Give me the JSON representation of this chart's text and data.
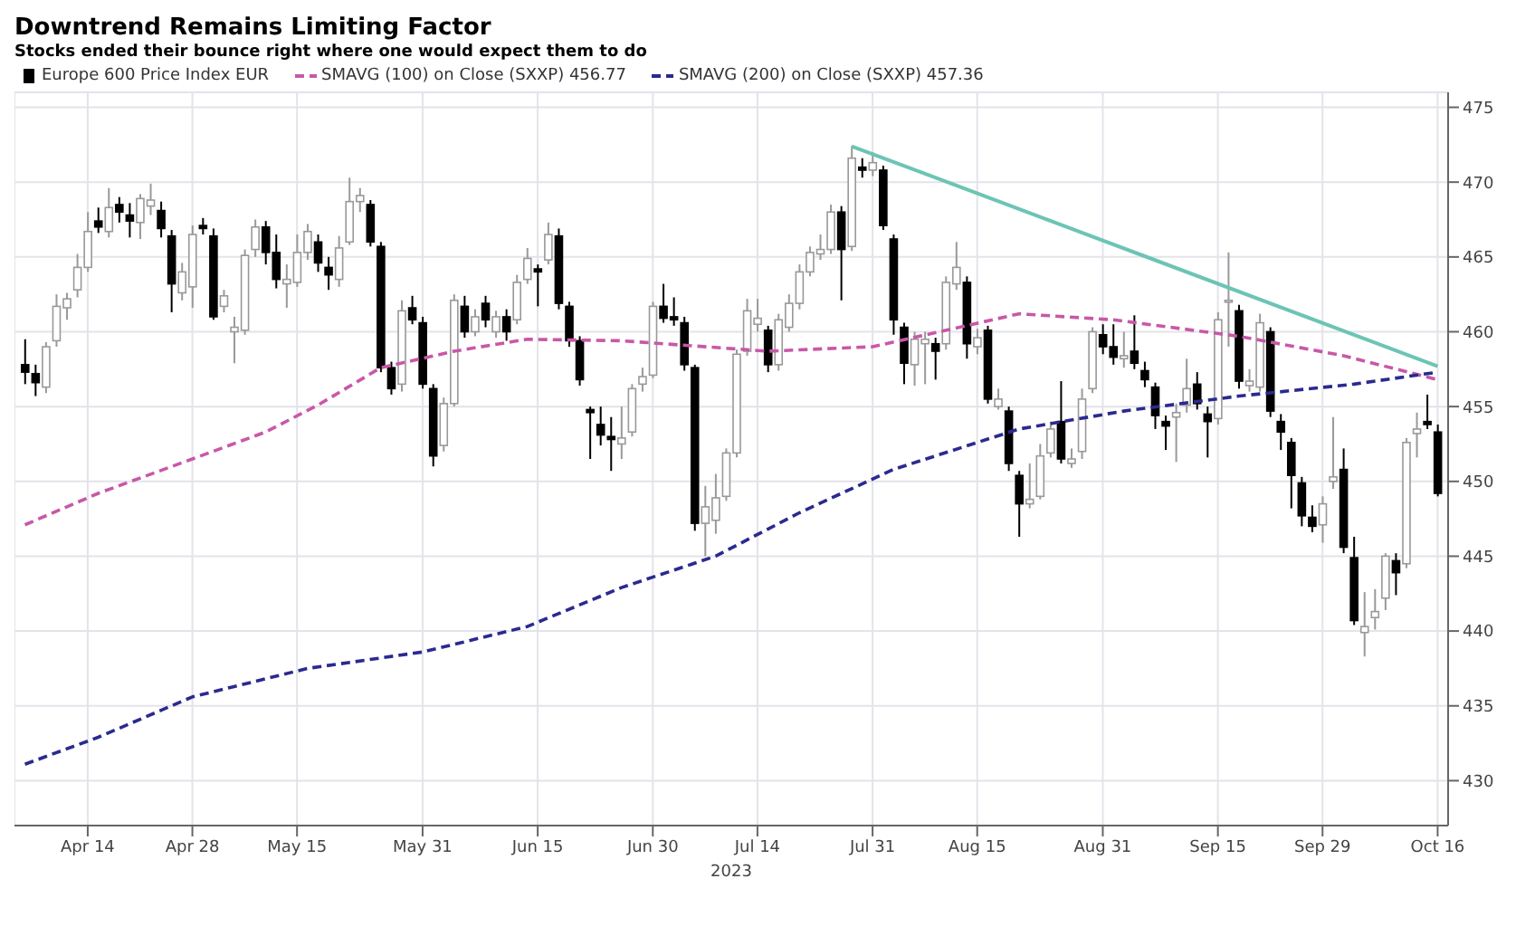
{
  "chart_data": {
    "type": "candlestick",
    "title": "Downtrend Remains Limiting Factor",
    "subtitle": "Stocks ended their bounce right where one would expect them to do",
    "xlabel": "2023",
    "categories": [
      null,
      null,
      null,
      null,
      null,
      null,
      "Apr 14",
      null,
      null,
      null,
      null,
      null,
      null,
      null,
      null,
      null,
      "Apr 28",
      null,
      null,
      null,
      null,
      null,
      null,
      null,
      null,
      null,
      "May 15",
      null,
      null,
      null,
      null,
      null,
      null,
      null,
      null,
      null,
      null,
      null,
      "May 31",
      null,
      null,
      null,
      null,
      null,
      null,
      null,
      null,
      null,
      null,
      "Jun 15",
      null,
      null,
      null,
      null,
      null,
      null,
      null,
      null,
      null,
      null,
      "Jun 30",
      null,
      null,
      null,
      null,
      null,
      null,
      null,
      null,
      null,
      "Jul 14",
      null,
      null,
      null,
      null,
      null,
      null,
      null,
      null,
      null,
      null,
      "Jul 31",
      null,
      null,
      null,
      null,
      null,
      null,
      null,
      null,
      null,
      "Aug 15",
      null,
      null,
      null,
      null,
      null,
      null,
      null,
      null,
      null,
      null,
      null,
      "Aug 31",
      null,
      null,
      null,
      null,
      null,
      null,
      null,
      null,
      null,
      null,
      "Sep 15",
      null,
      null,
      null,
      null,
      null,
      null,
      null,
      null,
      null,
      "Sep 29",
      null,
      null,
      null,
      null,
      null,
      null,
      null,
      null,
      null,
      null,
      "Oct 16"
    ],
    "ylim": [
      427,
      476
    ],
    "yticks": [
      430,
      435,
      440,
      445,
      450,
      455,
      460,
      465,
      470,
      475
    ],
    "grid": true,
    "legend": "top left",
    "marker": "none",
    "series": [
      {
        "name": "Europe 600 Price Index EUR",
        "color": "#000000",
        "colors": [
          "#000000",
          "#000000",
          "#ffffff",
          "#ffffff",
          "#ffffff",
          "#ffffff",
          "#ffffff",
          "#000000",
          "#ffffff",
          "#000000",
          "#000000",
          "#ffffff",
          "#ffffff",
          "#000000",
          "#000000",
          "#ffffff",
          "#ffffff",
          "#000000",
          "#000000",
          "#ffffff",
          "#ffffff",
          "#ffffff",
          "#ffffff",
          "#000000",
          "#000000",
          "#ffffff",
          "#ffffff",
          "#ffffff",
          "#000000",
          "#000000",
          "#ffffff",
          "#ffffff",
          "#ffffff",
          "#000000",
          "#000000",
          "#000000",
          "#ffffff",
          "#000000",
          "#000000",
          "#000000",
          "#ffffff",
          "#ffffff",
          "#000000",
          "#ffffff",
          "#000000",
          "#ffffff",
          "#000000",
          "#ffffff",
          "#ffffff",
          "#000000",
          "#ffffff",
          "#000000",
          "#000000",
          "#000000",
          "#000000",
          "#000000",
          "#000000",
          "#ffffff",
          "#ffffff",
          "#ffffff",
          "#ffffff",
          "#000000",
          "#000000",
          "#000000",
          "#000000",
          "#ffffff",
          "#ffffff",
          "#ffffff",
          "#ffffff",
          "#ffffff",
          "#ffffff",
          "#000000",
          "#ffffff",
          "#ffffff",
          "#ffffff",
          "#ffffff",
          "#ffffff",
          "#ffffff",
          "#000000",
          "#ffffff",
          "#000000",
          "#ffffff",
          "#000000",
          "#000000",
          "#000000",
          "#ffffff",
          "#ffffff",
          "#000000",
          "#ffffff",
          "#ffffff",
          "#000000",
          "#ffffff",
          "#000000",
          "#ffffff",
          "#000000",
          "#000000",
          "#ffffff",
          "#ffffff",
          "#ffffff",
          "#000000",
          "#ffffff",
          "#ffffff",
          "#ffffff",
          "#000000",
          "#000000",
          "#ffffff",
          "#000000",
          "#000000",
          "#000000",
          "#000000",
          "#ffffff",
          "#ffffff",
          "#000000",
          "#000000",
          "#ffffff",
          "#ffffff",
          "#000000",
          "#ffffff",
          "#ffffff",
          "#000000",
          "#000000",
          "#000000",
          "#000000",
          "#000000",
          "#ffffff",
          "#ffffff",
          "#000000",
          "#000000",
          "#ffffff",
          "#ffffff",
          "#ffffff",
          "#000000",
          "#ffffff",
          "#ffffff",
          "#000000",
          "#000000"
        ],
        "ohlc": [
          [
            457.8,
            459.5,
            456.5,
            457.3
          ],
          [
            457.2,
            457.8,
            455.7,
            456.6
          ],
          [
            456.3,
            459.3,
            455.9,
            459
          ],
          [
            459.4,
            462.5,
            459,
            461.7
          ],
          [
            461.6,
            462.6,
            460.8,
            462.2
          ],
          [
            462.8,
            465.2,
            462.3,
            464.3
          ],
          [
            464.3,
            468,
            464,
            466.7
          ],
          [
            467.4,
            468.3,
            466.6,
            467
          ],
          [
            466.7,
            469.6,
            466.3,
            468.3
          ],
          [
            468.5,
            469,
            467.3,
            468
          ],
          [
            467.8,
            468.6,
            466.3,
            467.4
          ],
          [
            467.3,
            469.2,
            466.2,
            468.9
          ],
          [
            468.4,
            469.9,
            467.8,
            468.8
          ],
          [
            468.1,
            468.7,
            466.3,
            466.9
          ],
          [
            466.4,
            466.8,
            461.3,
            463.2
          ],
          [
            462.6,
            464.6,
            462.1,
            464
          ],
          [
            463,
            467.1,
            461.6,
            466.5
          ],
          [
            467.1,
            467.6,
            466.5,
            466.9
          ],
          [
            466.4,
            466.9,
            460.8,
            461
          ],
          [
            461.7,
            462.8,
            461.3,
            462.4
          ],
          [
            460,
            461,
            457.9,
            460.3
          ],
          [
            460.1,
            465.5,
            459.8,
            465.1
          ],
          [
            465.5,
            467.5,
            465,
            467
          ],
          [
            467,
            467.4,
            464.5,
            465.3
          ],
          [
            465.3,
            466.5,
            462.9,
            463.5
          ],
          [
            463.2,
            464.5,
            461.6,
            463.5
          ],
          [
            463.3,
            466.5,
            463,
            465.3
          ],
          [
            465.3,
            467.2,
            464.8,
            466.7
          ],
          [
            466,
            466.5,
            464,
            464.6
          ],
          [
            464.3,
            465,
            462.8,
            463.8
          ],
          [
            463.5,
            466.4,
            463,
            465.6
          ],
          [
            466,
            470.3,
            465.8,
            468.7
          ],
          [
            468.7,
            469.6,
            468,
            469.1
          ],
          [
            468.5,
            468.8,
            465.7,
            466
          ],
          [
            465.7,
            466,
            457.3,
            457.6
          ],
          [
            457.6,
            458,
            455.8,
            456.2
          ],
          [
            456.5,
            462.1,
            456,
            461.4
          ],
          [
            461.6,
            462.4,
            460.5,
            460.8
          ],
          [
            460.6,
            461,
            456.2,
            456.5
          ],
          [
            456.2,
            456.5,
            451,
            451.7
          ],
          [
            452.4,
            455.6,
            452,
            455.2
          ],
          [
            455.2,
            462.5,
            455,
            462.1
          ],
          [
            461.7,
            462.4,
            459.6,
            460
          ],
          [
            460,
            461.5,
            459.7,
            461
          ],
          [
            461.9,
            462.4,
            460.3,
            460.8
          ],
          [
            460,
            461.4,
            459.6,
            461
          ],
          [
            461,
            461.5,
            459.4,
            460
          ],
          [
            460.8,
            463.8,
            460.5,
            463.3
          ],
          [
            463.5,
            465.6,
            463.2,
            464.9
          ],
          [
            464.2,
            464.5,
            461.7,
            464
          ],
          [
            464.8,
            467.3,
            464.5,
            466.5
          ],
          [
            466.4,
            466.9,
            461.5,
            461.9
          ],
          [
            461.7,
            462,
            459,
            459.4
          ],
          [
            459.4,
            459.7,
            456.4,
            456.8
          ],
          [
            454.8,
            455,
            451.5,
            454.6
          ],
          [
            453.8,
            455,
            452.4,
            453.1
          ],
          [
            453,
            454.3,
            450.7,
            452.8
          ],
          [
            452.5,
            455,
            451.5,
            452.9
          ],
          [
            453.3,
            456.5,
            453,
            456.2
          ],
          [
            456.5,
            457.6,
            456,
            457
          ],
          [
            457.1,
            462,
            456.9,
            461.7
          ],
          [
            461.7,
            463.2,
            460.6,
            460.9
          ],
          [
            461,
            462.3,
            460.4,
            460.8
          ],
          [
            460.6,
            461,
            457.4,
            457.8
          ],
          [
            457.6,
            457.8,
            446.7,
            447.2
          ],
          [
            447.2,
            449.7,
            445,
            448.3
          ],
          [
            447.4,
            450.5,
            446.5,
            448.9
          ],
          [
            449,
            452.2,
            448.7,
            451.9
          ],
          [
            451.9,
            458.8,
            451.6,
            458.5
          ],
          [
            458.7,
            462.2,
            458.4,
            461.4
          ],
          [
            460.5,
            462.2,
            460,
            460.9
          ],
          [
            460.1,
            460.4,
            457.3,
            457.8
          ],
          [
            457.8,
            461.2,
            457.4,
            460.8
          ],
          [
            460.3,
            462.5,
            460,
            461.9
          ],
          [
            461.9,
            464.5,
            461.5,
            464
          ],
          [
            464,
            465.7,
            463.7,
            465.3
          ],
          [
            465.2,
            466.5,
            464.8,
            465.5
          ],
          [
            465.5,
            468.5,
            465.2,
            468
          ],
          [
            468,
            468.4,
            462.1,
            465.5
          ],
          [
            465.7,
            472.4,
            465.4,
            471.6
          ],
          [
            471,
            471.6,
            470.3,
            470.8
          ],
          [
            470.8,
            472,
            470.4,
            471.3
          ],
          [
            470.8,
            471.1,
            466.8,
            467.1
          ],
          [
            466.2,
            466.5,
            459.8,
            460.8
          ],
          [
            460.3,
            460.6,
            456.5,
            457.9
          ],
          [
            457.8,
            460,
            456.4,
            459.5
          ],
          [
            459.2,
            460,
            456.5,
            459.5
          ],
          [
            459.2,
            459.6,
            456.8,
            458.7
          ],
          [
            459.2,
            463.7,
            458.8,
            463.3
          ],
          [
            463.2,
            466,
            462.8,
            464.3
          ],
          [
            463.3,
            463.7,
            458.2,
            459.2
          ],
          [
            459,
            460.2,
            458.5,
            459.6
          ],
          [
            460.1,
            460.4,
            455.2,
            455.5
          ],
          [
            455,
            456.2,
            454.8,
            455.5
          ],
          [
            454.7,
            455,
            450.7,
            451.2
          ],
          [
            450.4,
            450.7,
            446.3,
            448.5
          ],
          [
            448.5,
            451.2,
            448.2,
            448.8
          ],
          [
            449,
            452.5,
            448.8,
            451.7
          ],
          [
            451.9,
            454,
            451.6,
            453.5
          ],
          [
            454,
            456.7,
            451.2,
            451.5
          ],
          [
            451.2,
            452.2,
            450.9,
            451.5
          ],
          [
            452,
            456.2,
            451.5,
            455.5
          ],
          [
            456.2,
            460.3,
            455.9,
            460
          ],
          [
            459.8,
            460.5,
            458.5,
            459
          ],
          [
            459,
            460.5,
            457.8,
            458.3
          ],
          [
            458.2,
            460,
            457.6,
            458.4
          ],
          [
            458.7,
            461.1,
            457.5,
            457.9
          ],
          [
            457.4,
            458,
            456.3,
            456.8
          ],
          [
            456.3,
            456.6,
            453.5,
            454.4
          ],
          [
            454,
            454.4,
            452.1,
            453.7
          ],
          [
            454.3,
            455.2,
            451.3,
            454.6
          ],
          [
            455.1,
            458.2,
            454.6,
            456.2
          ],
          [
            456.5,
            457.3,
            454.8,
            455.2
          ],
          [
            454.5,
            455,
            451.6,
            454
          ],
          [
            454.2,
            461.3,
            453.8,
            460.8
          ],
          [
            462,
            465.3,
            459,
            462.1
          ],
          [
            461.4,
            461.8,
            456.2,
            456.7
          ],
          [
            456.4,
            457.5,
            456,
            456.7
          ],
          [
            456.3,
            461.2,
            456,
            460.6
          ],
          [
            460,
            460.3,
            454.3,
            454.7
          ],
          [
            454,
            454.5,
            452.1,
            453.3
          ],
          [
            452.6,
            452.9,
            448.2,
            450.4
          ],
          [
            449.9,
            450.3,
            447,
            447.7
          ],
          [
            447.6,
            448.4,
            446.6,
            447
          ],
          [
            447.1,
            449,
            445.9,
            448.5
          ],
          [
            450,
            454.3,
            449.5,
            450.3
          ],
          [
            450.8,
            452.2,
            445.2,
            445.6
          ],
          [
            444.9,
            446.3,
            440.4,
            440.7
          ],
          [
            439.9,
            442.6,
            438.3,
            440.3
          ],
          [
            440.9,
            442.8,
            440.1,
            441.3
          ],
          [
            442.2,
            445.2,
            441.4,
            445
          ],
          [
            444.7,
            445.2,
            442.4,
            443.9
          ],
          [
            444.5,
            452.9,
            444.2,
            452.6
          ],
          [
            453.2,
            454.6,
            451.6,
            453.5
          ],
          [
            454,
            455.8,
            453.5,
            453.8
          ],
          [
            453.3,
            453.8,
            449,
            449.2
          ]
        ]
      },
      {
        "type": "line",
        "name": "SMAVG (100)  on Close (SXXP)  456.77",
        "color": "#c858a8",
        "line_style": "dashed",
        "values": [
          447.1,
          null,
          null,
          null,
          null,
          null,
          null,
          449.2,
          null,
          null,
          null,
          null,
          null,
          null,
          null,
          null,
          451.5,
          null,
          null,
          null,
          null,
          null,
          null,
          453.3,
          null,
          null,
          null,
          null,
          455.1,
          null,
          null,
          null,
          null,
          null,
          457.6,
          null,
          null,
          null,
          null,
          null,
          null,
          458.7,
          null,
          null,
          null,
          null,
          null,
          null,
          459.5,
          null,
          null,
          null,
          null,
          null,
          null,
          null,
          null,
          459.4,
          null,
          null,
          null,
          null,
          null,
          null,
          null,
          null,
          null,
          null,
          null,
          null,
          null,
          458.7,
          null,
          null,
          null,
          null,
          null,
          null,
          null,
          null,
          null,
          459,
          null,
          null,
          null,
          null,
          null,
          null,
          null,
          null,
          null,
          null,
          null,
          null,
          null,
          461.2,
          null,
          null,
          null,
          null,
          null,
          null,
          null,
          null,
          460.8,
          null,
          null,
          null,
          null,
          null,
          null,
          null,
          null,
          null,
          null,
          null,
          459.7,
          null,
          null,
          null,
          null,
          null,
          null,
          null,
          null,
          null,
          458.4,
          null,
          null,
          null,
          null,
          null,
          null,
          null,
          null,
          456.8
        ]
      },
      {
        "type": "line",
        "name": "SMAVG (200)  on Close (SXXP)  457.36",
        "color": "#2a2a90",
        "line_style": "dashed",
        "values": [
          431.1,
          null,
          null,
          null,
          null,
          null,
          null,
          432.9,
          null,
          null,
          null,
          null,
          null,
          null,
          null,
          null,
          435.6,
          null,
          null,
          null,
          null,
          null,
          null,
          null,
          null,
          null,
          null,
          437.5,
          null,
          null,
          null,
          null,
          null,
          null,
          null,
          null,
          null,
          null,
          438.6,
          null,
          null,
          null,
          null,
          null,
          null,
          null,
          null,
          null,
          440.3,
          null,
          null,
          null,
          null,
          null,
          null,
          null,
          null,
          442.9,
          null,
          null,
          null,
          null,
          null,
          null,
          null,
          null,
          445,
          null,
          null,
          null,
          null,
          null,
          null,
          null,
          447.9,
          null,
          null,
          null,
          null,
          null,
          null,
          null,
          null,
          450.8,
          null,
          null,
          null,
          null,
          null,
          null,
          null,
          null,
          null,
          null,
          null,
          453.5,
          null,
          null,
          null,
          null,
          null,
          null,
          null,
          null,
          null,
          454.7,
          null,
          null,
          null,
          null,
          null,
          null,
          null,
          null,
          null,
          null,
          455.7,
          null,
          null,
          null,
          null,
          null,
          null,
          null,
          null,
          null,
          null,
          456.5,
          null,
          null,
          null,
          null,
          null,
          null,
          null,
          457.3
        ]
      },
      {
        "type": "line",
        "color": "#6cc4b4",
        "line_style": "solid",
        "values": [
          null,
          null,
          null,
          null,
          null,
          null,
          null,
          null,
          null,
          null,
          null,
          null,
          null,
          null,
          null,
          null,
          null,
          null,
          null,
          null,
          null,
          null,
          null,
          null,
          null,
          null,
          null,
          null,
          null,
          null,
          null,
          null,
          null,
          null,
          null,
          null,
          null,
          null,
          null,
          null,
          null,
          null,
          null,
          null,
          null,
          null,
          null,
          null,
          null,
          null,
          null,
          null,
          null,
          null,
          null,
          null,
          null,
          null,
          null,
          null,
          null,
          null,
          null,
          null,
          null,
          null,
          null,
          null,
          null,
          null,
          null,
          null,
          null,
          null,
          null,
          null,
          null,
          null,
          null,
          472.4,
          null,
          null,
          null,
          null,
          null,
          null,
          null,
          null,
          null,
          null,
          null,
          null,
          null,
          null,
          null,
          null,
          null,
          null,
          null,
          null,
          null,
          null,
          null,
          null,
          null,
          null,
          null,
          null,
          null,
          null,
          null,
          null,
          null,
          null,
          null,
          null,
          null,
          null,
          null,
          null,
          null,
          null,
          null,
          null,
          null,
          null,
          null,
          null,
          null,
          null,
          null,
          null,
          null,
          null,
          null,
          457.7
        ]
      }
    ]
  }
}
